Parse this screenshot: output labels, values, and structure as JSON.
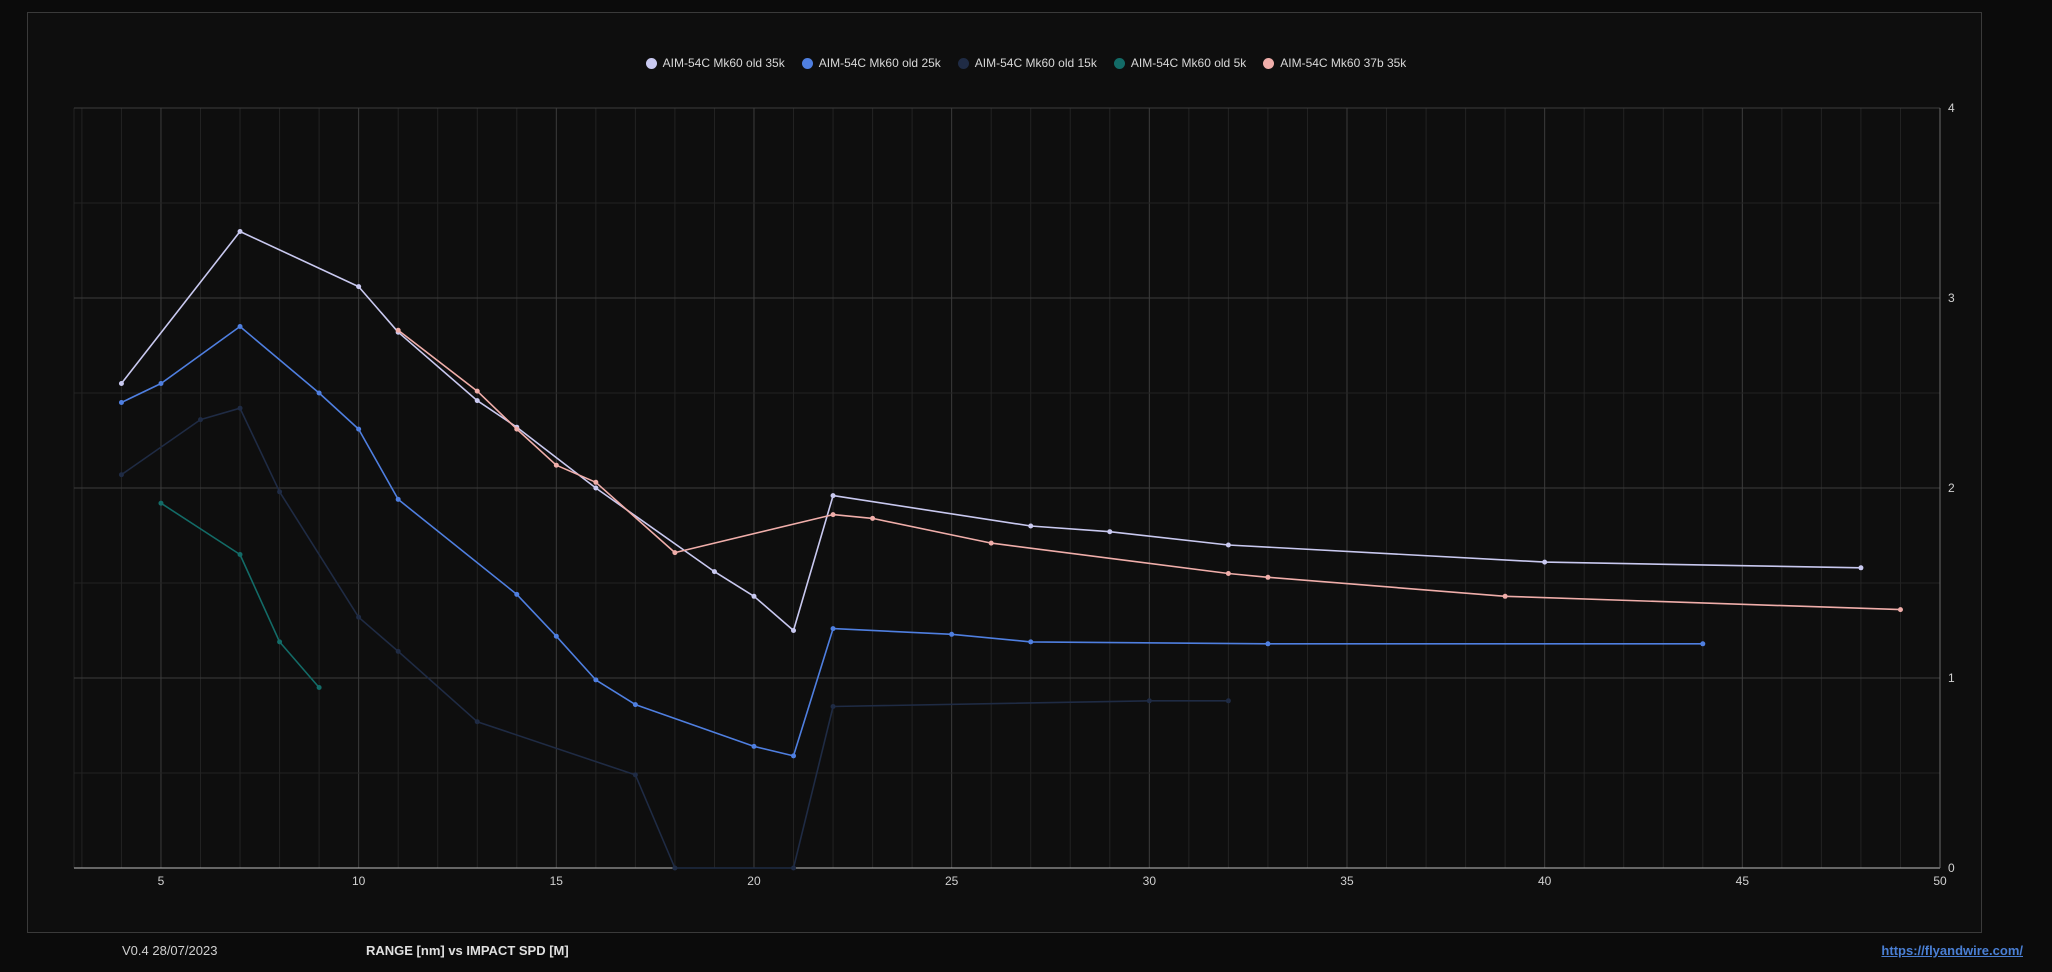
{
  "footer": {
    "version": "V0.4 28/07/2023",
    "title": "RANGE [nm] vs IMPACT SPD [M]",
    "link": "https://flyandwire.com/"
  },
  "colors": {
    "background": "#0b0b0b",
    "grid_major": "#3c3c3c",
    "grid_minor": "#232323",
    "link": "#4a7fd4"
  },
  "chart_data": {
    "type": "line",
    "title": "RANGE [nm] vs IMPACT SPD [M]",
    "xlabel": "",
    "ylabel": "",
    "xlim": [
      2.8,
      50
    ],
    "ylim": [
      0,
      4
    ],
    "x_ticks": [
      5,
      10,
      15,
      20,
      25,
      30,
      35,
      40,
      45,
      50
    ],
    "y_ticks": [
      0,
      1,
      2,
      3,
      4
    ],
    "y_axis_side": "right",
    "grid": true,
    "legend_position": "top-center",
    "series": [
      {
        "name": "AIM-54C Mk60 old 35k",
        "color": "#c9c9f0",
        "points": [
          [
            4,
            2.55
          ],
          [
            7,
            3.35
          ],
          [
            10,
            3.06
          ],
          [
            11,
            2.82
          ],
          [
            13,
            2.46
          ],
          [
            14,
            2.32
          ],
          [
            16,
            2.0
          ],
          [
            19,
            1.56
          ],
          [
            20,
            1.43
          ],
          [
            21,
            1.25
          ],
          [
            22,
            1.96
          ],
          [
            27,
            1.8
          ],
          [
            29,
            1.77
          ],
          [
            32,
            1.7
          ],
          [
            40,
            1.61
          ],
          [
            48,
            1.58
          ]
        ]
      },
      {
        "name": "AIM-54C Mk60 old 25k",
        "color": "#4f7fe0",
        "points": [
          [
            4,
            2.45
          ],
          [
            5,
            2.55
          ],
          [
            7,
            2.85
          ],
          [
            9,
            2.5
          ],
          [
            10,
            2.31
          ],
          [
            11,
            1.94
          ],
          [
            14,
            1.44
          ],
          [
            15,
            1.22
          ],
          [
            16,
            0.99
          ],
          [
            17,
            0.86
          ],
          [
            20,
            0.64
          ],
          [
            21,
            0.59
          ],
          [
            22,
            1.26
          ],
          [
            25,
            1.23
          ],
          [
            27,
            1.19
          ],
          [
            33,
            1.18
          ],
          [
            44,
            1.18
          ]
        ]
      },
      {
        "name": "AIM-54C Mk60 old 15k",
        "color": "#1f2b44",
        "points": [
          [
            4,
            2.07
          ],
          [
            6,
            2.36
          ],
          [
            7,
            2.42
          ],
          [
            8,
            1.98
          ],
          [
            10,
            1.32
          ],
          [
            11,
            1.14
          ],
          [
            13,
            0.77
          ],
          [
            17,
            0.49
          ],
          [
            18,
            0.0
          ],
          [
            21,
            0.0
          ],
          [
            22,
            0.85
          ],
          [
            30,
            0.88
          ],
          [
            32,
            0.88
          ]
        ]
      },
      {
        "name": "AIM-54C Mk60 old 5k",
        "color": "#136b67",
        "points": [
          [
            5,
            1.92
          ],
          [
            7,
            1.65
          ],
          [
            8,
            1.19
          ],
          [
            9,
            0.95
          ]
        ]
      },
      {
        "name": "AIM-54C Mk60 37b 35k",
        "color": "#f0aeaa",
        "points": [
          [
            11,
            2.83
          ],
          [
            13,
            2.51
          ],
          [
            14,
            2.31
          ],
          [
            15,
            2.12
          ],
          [
            16,
            2.03
          ],
          [
            18,
            1.66
          ],
          [
            22,
            1.86
          ],
          [
            23,
            1.84
          ],
          [
            26,
            1.71
          ],
          [
            32,
            1.55
          ],
          [
            33,
            1.53
          ],
          [
            39,
            1.43
          ],
          [
            49,
            1.36
          ]
        ]
      }
    ]
  }
}
